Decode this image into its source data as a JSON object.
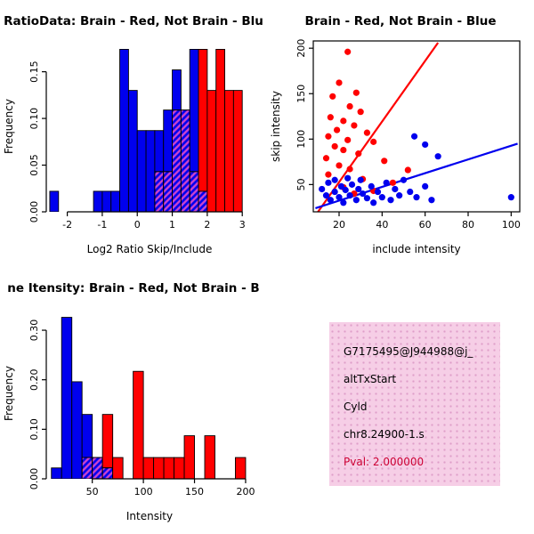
{
  "figure": {
    "background": "#FFFFFF"
  },
  "chart_data": [
    {
      "id": "hist_log_ratio",
      "type": "histogram",
      "title": "RatioData: Brain - Red, Not Brain - Blu",
      "xlabel": "Log2 Ratio Skip/Include",
      "ylabel": "Frequency",
      "xlim": [
        -2.6,
        3.3
      ],
      "ylim": [
        0,
        0.183
      ],
      "xticks": [
        -2,
        -1,
        0,
        1,
        2,
        3
      ],
      "xtick_labels": [
        "-2",
        "-1",
        "0",
        "1",
        "2",
        "3"
      ],
      "yticks": [
        0,
        0.05,
        0.1,
        0.15
      ],
      "ytick_labels": [
        "0.00",
        "0.05",
        "0.10",
        "0.15"
      ],
      "bin_start": -2.5,
      "bin_width": 0.25,
      "overlap_hatch": "#CC44CC",
      "series": [
        {
          "name": "Not Brain",
          "color": "#0000EE",
          "heights": [
            0.022,
            0,
            0,
            0,
            0,
            0.022,
            0.022,
            0.022,
            0.174,
            0.13,
            0.087,
            0.087,
            0.087,
            0.109,
            0.152,
            0.109,
            0.174,
            0.022,
            0,
            0,
            0,
            0
          ]
        },
        {
          "name": "Brain",
          "color": "#FF0000",
          "heights": [
            0,
            0,
            0,
            0,
            0,
            0,
            0,
            0,
            0,
            0,
            0,
            0,
            0.043,
            0.043,
            0.109,
            0.109,
            0.043,
            0.174,
            0.13,
            0.174,
            0.13,
            0.13
          ]
        }
      ]
    },
    {
      "id": "scatter_intensity",
      "type": "scatter",
      "title": "Brain - Red, Not Brain - Blue",
      "xlabel": "include intensity",
      "ylabel": "skip intensity",
      "xlim": [
        8,
        104
      ],
      "ylim": [
        20,
        208
      ],
      "xticks": [
        20,
        40,
        60,
        80,
        100
      ],
      "yticks": [
        50,
        100,
        150,
        200
      ],
      "series": [
        {
          "name": "Brain",
          "color": "#FF0000",
          "points": [
            [
              24,
              196
            ],
            [
              20,
              162
            ],
            [
              28,
              151
            ],
            [
              17,
              147
            ],
            [
              25,
              136
            ],
            [
              30,
              130
            ],
            [
              16,
              124
            ],
            [
              22,
              120
            ],
            [
              27,
              115
            ],
            [
              19,
              110
            ],
            [
              33,
              107
            ],
            [
              15,
              103
            ],
            [
              24,
              99
            ],
            [
              36,
              97
            ],
            [
              18,
              92
            ],
            [
              22,
              88
            ],
            [
              29,
              84
            ],
            [
              14,
              79
            ],
            [
              41,
              76
            ],
            [
              20,
              71
            ],
            [
              25,
              67
            ],
            [
              52,
              66
            ],
            [
              15,
              61
            ],
            [
              31,
              56
            ],
            [
              45,
              52
            ],
            [
              22,
              47
            ],
            [
              36,
              43
            ],
            [
              27,
              40
            ]
          ]
        },
        {
          "name": "Not Brain",
          "color": "#0000EE",
          "points": [
            [
              12,
              45
            ],
            [
              14,
              38
            ],
            [
              15,
              52
            ],
            [
              16,
              33
            ],
            [
              18,
              42
            ],
            [
              18,
              55
            ],
            [
              20,
              36
            ],
            [
              21,
              48
            ],
            [
              22,
              30
            ],
            [
              23,
              44
            ],
            [
              24,
              57
            ],
            [
              25,
              38
            ],
            [
              26,
              50
            ],
            [
              28,
              33
            ],
            [
              29,
              45
            ],
            [
              30,
              55
            ],
            [
              31,
              40
            ],
            [
              33,
              35
            ],
            [
              35,
              48
            ],
            [
              36,
              30
            ],
            [
              38,
              42
            ],
            [
              40,
              36
            ],
            [
              42,
              52
            ],
            [
              44,
              33
            ],
            [
              46,
              45
            ],
            [
              48,
              38
            ],
            [
              50,
              55
            ],
            [
              53,
              42
            ],
            [
              56,
              36
            ],
            [
              60,
              48
            ],
            [
              63,
              33
            ],
            [
              55,
              103
            ],
            [
              60,
              94
            ],
            [
              66,
              81
            ],
            [
              100,
              36
            ]
          ]
        }
      ],
      "lines": [
        {
          "name": "brain-fit-line",
          "color": "#FF0000",
          "x1": 9,
          "y1": 16,
          "x2": 66,
          "y2": 206
        },
        {
          "name": "notbrain-fit-line",
          "color": "#0000EE",
          "x1": 9,
          "y1": 24,
          "x2": 103,
          "y2": 95
        }
      ]
    },
    {
      "id": "hist_gene_intensity",
      "type": "histogram",
      "title": "ne Itensity: Brain - Red, Not Brain - B",
      "xlabel": "Intensity",
      "ylabel": "Frequency",
      "xlim": [
        5,
        207
      ],
      "ylim": [
        0,
        0.345
      ],
      "xticks": [
        50,
        100,
        150,
        200
      ],
      "xtick_labels": [
        "50",
        "100",
        "150",
        "200"
      ],
      "yticks": [
        0,
        0.1,
        0.2,
        0.3
      ],
      "ytick_labels": [
        "0.00",
        "0.10",
        "0.20",
        "0.30"
      ],
      "bin_start": 10,
      "bin_width": 10,
      "overlap_hatch": "#CC44CC",
      "series": [
        {
          "name": "Not Brain",
          "color": "#0000EE",
          "heights": [
            0.022,
            0.326,
            0.196,
            0.13,
            0.043,
            0.022,
            0,
            0,
            0,
            0,
            0,
            0,
            0,
            0,
            0,
            0,
            0,
            0,
            0
          ]
        },
        {
          "name": "Brain",
          "color": "#FF0000",
          "heights": [
            0,
            0,
            0,
            0.043,
            0.043,
            0.13,
            0.043,
            0,
            0.217,
            0.043,
            0.043,
            0.043,
            0.043,
            0.087,
            0,
            0.087,
            0,
            0,
            0.043
          ]
        }
      ]
    }
  ],
  "info_box": {
    "background": "#F6CEE6",
    "dot_color": "#DE9EC9",
    "lines": [
      {
        "text": "G7175495@J944988@j_",
        "color": "#000000"
      },
      {
        "text": "altTxStart",
        "color": "#000000"
      },
      {
        "text": "Cyld",
        "color": "#000000"
      },
      {
        "text": "chr8.24900-1.s",
        "color": "#000000"
      },
      {
        "text": "Pval: 2.000000",
        "color": "#CC0033"
      }
    ]
  }
}
